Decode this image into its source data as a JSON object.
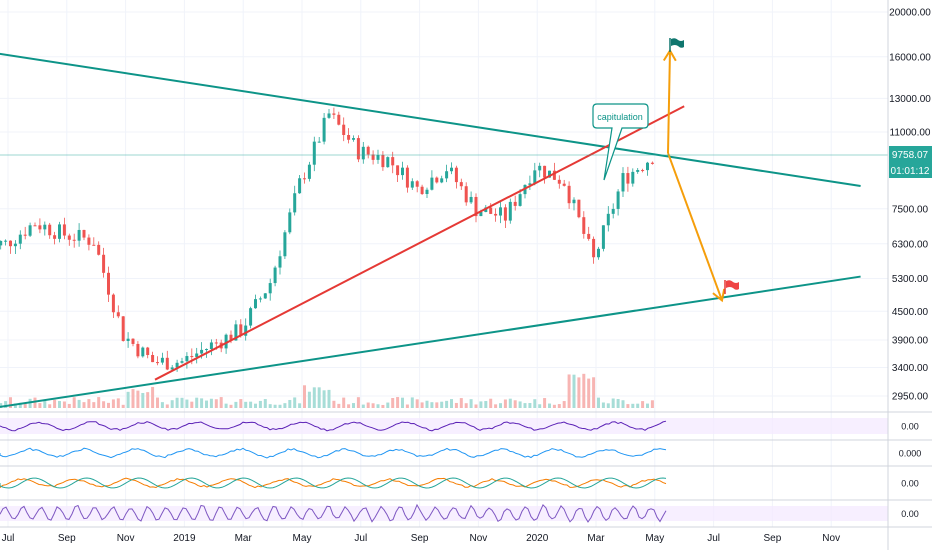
{
  "chart_data": {
    "type": "candlestick",
    "title": "",
    "xlabel": "",
    "ylabel": "",
    "y_scale": "log",
    "ylim": [
      2600,
      21000
    ],
    "y_ticks": [
      "20000.00",
      "16000.00",
      "13000.00",
      "11000.00",
      "9758.07",
      "7500.00",
      "6300.00",
      "5300.00",
      "4500.00",
      "3900.00",
      "3400.00",
      "2950.00"
    ],
    "x_ticks": [
      "Jul",
      "Sep",
      "Nov",
      "2019",
      "Mar",
      "May",
      "Jul",
      "Sep",
      "Nov",
      "2020",
      "Mar",
      "May",
      "Jul",
      "Sep",
      "Nov"
    ],
    "last_price": "9758.07",
    "countdown": "01:01:12",
    "annotation": "capitulation",
    "price_series": {
      "months": [
        "Jul 2018",
        "Aug 2018",
        "Sep 2018",
        "Oct 2018",
        "Nov 2018",
        "Dec 2018",
        "Jan 2019",
        "Feb 2019",
        "Mar 2019",
        "Apr 2019",
        "May 2019",
        "Jun 2019",
        "Jul 2019",
        "Aug 2019",
        "Sep 2019",
        "Oct 2019",
        "Nov 2019",
        "Dec 2019",
        "Jan 2020",
        "Feb 2020",
        "Mar 2020",
        "Apr 2020",
        "May 2020"
      ],
      "close": [
        6300,
        7000,
        6600,
        6400,
        4000,
        3500,
        3500,
        3800,
        4100,
        5200,
        8500,
        12000,
        10000,
        9600,
        8300,
        9200,
        7500,
        7200,
        9300,
        8600,
        5800,
        8700,
        9758
      ]
    },
    "trendlines": [
      {
        "name": "upper resistance",
        "color": "#0d9488",
        "from": [
          "Jun 2018",
          16500
        ],
        "to": [
          "Dec 2020",
          8400
        ]
      },
      {
        "name": "lower support",
        "color": "#0d9488",
        "from": [
          "Jun 2018",
          2750
        ],
        "to": [
          "Dec 2020",
          5350
        ]
      },
      {
        "name": "red support",
        "color": "#e53935",
        "from": [
          "Dec 2018",
          3200
        ],
        "to": [
          "Jun 2020",
          12500
        ]
      }
    ],
    "projections": [
      {
        "direction": "up",
        "color": "#f59e0b",
        "target": 16500,
        "marker": "green-flag"
      },
      {
        "direction": "down",
        "color": "#f59e0b",
        "target": 4750,
        "marker": "red-flag"
      }
    ],
    "indicator_panes": [
      {
        "name": "rsi",
        "value_label": "0.00"
      },
      {
        "name": "histogram",
        "value_label": "0.000"
      },
      {
        "name": "macd",
        "value_label": "0.00"
      },
      {
        "name": "stoch",
        "value_label": "0.00"
      }
    ],
    "colors": {
      "up": "#26a69a",
      "down": "#ef5350",
      "teal_line": "#0d9488",
      "red_line": "#e53935",
      "projection": "#f59e0b"
    }
  }
}
